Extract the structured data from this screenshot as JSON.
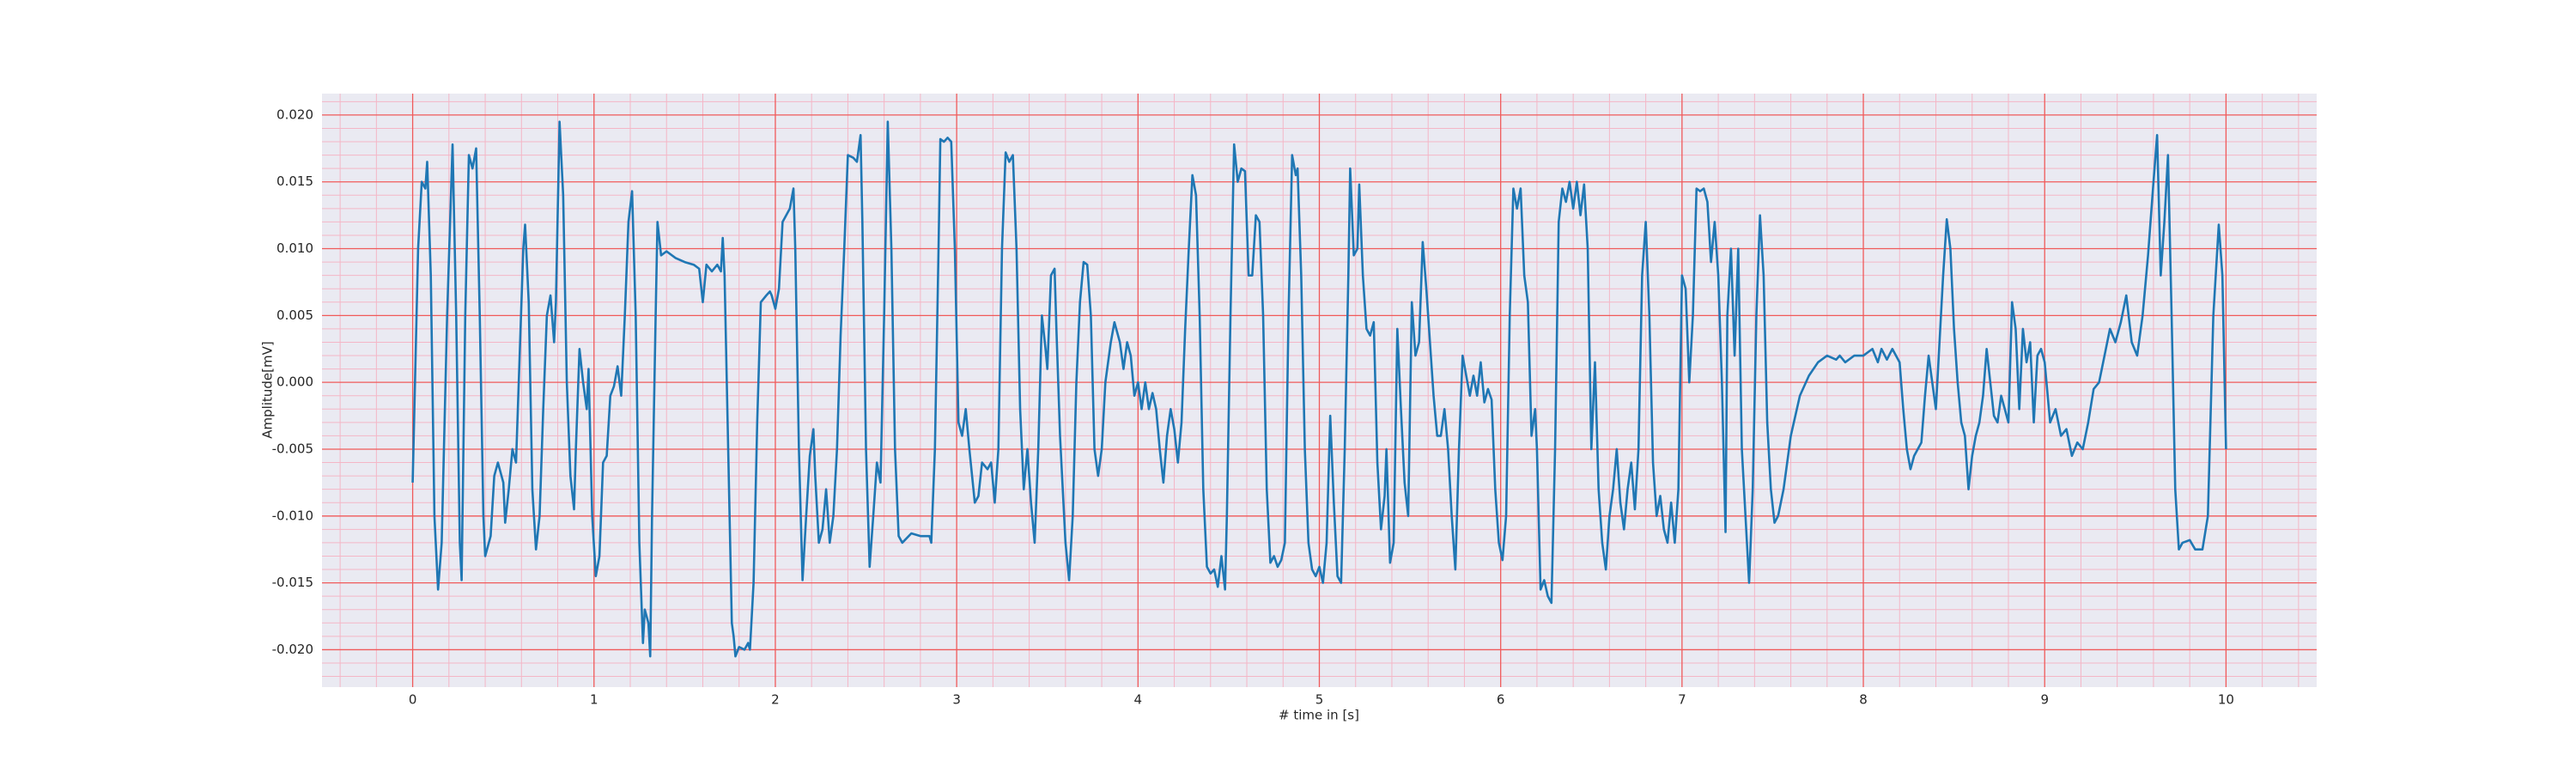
{
  "chart_data": {
    "type": "line",
    "xlabel": "# time in [s]",
    "ylabel": "Amplitude[mV]",
    "color": "#1f77b4",
    "grid": true,
    "minor_grid": true,
    "xlim": [
      -0.5,
      10.5
    ],
    "ylim": [
      -0.0228,
      0.0216
    ],
    "xticks": [
      0,
      1,
      2,
      3,
      4,
      5,
      6,
      7,
      8,
      9,
      10
    ],
    "yticks": [
      {
        "value": -0.02,
        "label": "-0.020"
      },
      {
        "value": -0.015,
        "label": "-0.015"
      },
      {
        "value": -0.01,
        "label": "-0.010"
      },
      {
        "value": -0.005,
        "label": "-0.005"
      },
      {
        "value": 0,
        "label": "0.000"
      },
      {
        "value": 0.005,
        "label": "0.005"
      },
      {
        "value": 0.01,
        "label": "0.010"
      },
      {
        "value": 0.015,
        "label": "0.015"
      },
      {
        "value": 0.02,
        "label": "0.020"
      }
    ],
    "x": [
      0.0,
      0.03,
      0.05,
      0.07,
      0.08,
      0.1,
      0.12,
      0.14,
      0.16,
      0.19,
      0.22,
      0.24,
      0.26,
      0.27,
      0.29,
      0.31,
      0.33,
      0.35,
      0.37,
      0.39,
      0.4,
      0.43,
      0.45,
      0.47,
      0.5,
      0.51,
      0.53,
      0.55,
      0.57,
      0.59,
      0.61,
      0.62,
      0.64,
      0.66,
      0.68,
      0.7,
      0.72,
      0.74,
      0.76,
      0.78,
      0.79,
      0.81,
      0.83,
      0.85,
      0.87,
      0.89,
      0.9,
      0.92,
      0.94,
      0.96,
      0.97,
      0.99,
      1.01,
      1.03,
      1.05,
      1.07,
      1.09,
      1.11,
      1.13,
      1.15,
      1.17,
      1.19,
      1.21,
      1.23,
      1.25,
      1.27,
      1.28,
      1.3,
      1.31,
      1.32,
      1.34,
      1.35,
      1.37,
      1.4,
      1.45,
      1.5,
      1.55,
      1.58,
      1.6,
      1.62,
      1.65,
      1.68,
      1.7,
      1.71,
      1.72,
      1.74,
      1.76,
      1.77,
      1.78,
      1.8,
      1.83,
      1.85,
      1.86,
      1.88,
      1.9,
      1.92,
      1.95,
      1.97,
      1.98,
      2.0,
      2.02,
      2.04,
      2.06,
      2.08,
      2.1,
      2.11,
      2.13,
      2.15,
      2.17,
      2.19,
      2.21,
      2.22,
      2.24,
      2.26,
      2.28,
      2.3,
      2.32,
      2.34,
      2.36,
      2.38,
      2.4,
      2.43,
      2.45,
      2.47,
      2.48,
      2.5,
      2.52,
      2.54,
      2.56,
      2.58,
      2.6,
      2.62,
      2.64,
      2.66,
      2.68,
      2.7,
      2.75,
      2.8,
      2.85,
      2.86,
      2.88,
      2.9,
      2.91,
      2.93,
      2.95,
      2.97,
      2.99,
      3.01,
      3.03,
      3.05,
      3.07,
      3.1,
      3.12,
      3.14,
      3.17,
      3.19,
      3.21,
      3.23,
      3.25,
      3.27,
      3.29,
      3.31,
      3.33,
      3.35,
      3.37,
      3.39,
      3.41,
      3.43,
      3.45,
      3.47,
      3.49,
      3.5,
      3.52,
      3.54,
      3.55,
      3.57,
      3.6,
      3.62,
      3.64,
      3.66,
      3.68,
      3.7,
      3.72,
      3.74,
      3.76,
      3.78,
      3.8,
      3.82,
      3.85,
      3.87,
      3.9,
      3.92,
      3.94,
      3.96,
      3.98,
      4.0,
      4.02,
      4.04,
      4.06,
      4.08,
      4.1,
      4.12,
      4.14,
      4.16,
      4.18,
      4.2,
      4.22,
      4.24,
      4.26,
      4.28,
      4.3,
      4.32,
      4.34,
      4.36,
      4.38,
      4.4,
      4.42,
      4.44,
      4.46,
      4.48,
      4.49,
      4.51,
      4.53,
      4.55,
      4.57,
      4.59,
      4.61,
      4.63,
      4.65,
      4.67,
      4.69,
      4.71,
      4.73,
      4.75,
      4.77,
      4.79,
      4.81,
      4.83,
      4.85,
      4.87,
      4.88,
      4.9,
      4.92,
      4.94,
      4.96,
      4.98,
      5.0,
      5.02,
      5.04,
      5.06,
      5.08,
      5.1,
      5.12,
      5.14,
      5.16,
      5.17,
      5.19,
      5.21,
      5.22,
      5.24,
      5.26,
      5.28,
      5.3,
      5.32,
      5.34,
      5.36,
      5.37,
      5.39,
      5.41,
      5.43,
      5.45,
      5.47,
      5.49,
      5.51,
      5.53,
      5.55,
      5.57,
      5.59,
      5.61,
      5.63,
      5.65,
      5.67,
      5.69,
      5.71,
      5.73,
      5.75,
      5.77,
      5.79,
      5.81,
      5.83,
      5.85,
      5.87,
      5.89,
      5.91,
      5.93,
      5.95,
      5.97,
      5.99,
      6.01,
      6.03,
      6.05,
      6.07,
      6.09,
      6.11,
      6.13,
      6.15,
      6.17,
      6.19,
      6.2,
      6.22,
      6.24,
      6.26,
      6.28,
      6.3,
      6.32,
      6.34,
      6.36,
      6.38,
      6.4,
      6.42,
      6.44,
      6.46,
      6.48,
      6.5,
      6.52,
      6.54,
      6.56,
      6.58,
      6.6,
      6.62,
      6.64,
      6.66,
      6.68,
      6.7,
      6.72,
      6.74,
      6.76,
      6.78,
      6.8,
      6.82,
      6.84,
      6.86,
      6.88,
      6.9,
      6.92,
      6.94,
      6.96,
      6.98,
      7.0,
      7.02,
      7.04,
      7.06,
      7.08,
      7.1,
      7.12,
      7.14,
      7.16,
      7.18,
      7.2,
      7.22,
      7.24,
      7.25,
      7.27,
      7.29,
      7.31,
      7.33,
      7.35,
      7.37,
      7.39,
      7.41,
      7.43,
      7.45,
      7.47,
      7.49,
      7.51,
      7.53,
      7.56,
      7.6,
      7.65,
      7.7,
      7.75,
      7.8,
      7.85,
      7.87,
      7.9,
      7.95,
      8.0,
      8.05,
      8.08,
      8.1,
      8.13,
      8.16,
      8.2,
      8.22,
      8.24,
      8.26,
      8.28,
      8.3,
      8.32,
      8.34,
      8.36,
      8.38,
      8.4,
      8.42,
      8.44,
      8.46,
      8.48,
      8.5,
      8.52,
      8.54,
      8.56,
      8.58,
      8.6,
      8.62,
      8.64,
      8.66,
      8.68,
      8.7,
      8.72,
      8.74,
      8.76,
      8.78,
      8.8,
      8.82,
      8.84,
      8.86,
      8.88,
      8.9,
      8.92,
      8.94,
      8.96,
      8.98,
      9.0,
      9.03,
      9.06,
      9.09,
      9.12,
      9.15,
      9.18,
      9.21,
      9.24,
      9.27,
      9.3,
      9.33,
      9.36,
      9.39,
      9.42,
      9.45,
      9.48,
      9.51,
      9.54,
      9.57,
      9.6,
      9.62,
      9.64,
      9.66,
      9.68,
      9.7,
      9.72,
      9.74,
      9.76,
      9.8,
      9.83,
      9.87,
      9.9,
      9.93,
      9.96,
      9.98,
      10.0
    ],
    "values": [
      -0.0075,
      0.01,
      0.015,
      0.0145,
      0.0165,
      0.008,
      -0.01,
      -0.0155,
      -0.012,
      0.005,
      0.0178,
      0.005,
      -0.012,
      -0.0148,
      0.005,
      0.017,
      0.016,
      0.0175,
      0.005,
      -0.01,
      -0.013,
      -0.0115,
      -0.007,
      -0.006,
      -0.0075,
      -0.0105,
      -0.008,
      -0.005,
      -0.006,
      0.002,
      0.01,
      0.0118,
      0.006,
      -0.008,
      -0.0125,
      -0.01,
      -0.002,
      0.005,
      0.0065,
      0.003,
      0.006,
      0.0195,
      0.014,
      0.0,
      -0.007,
      -0.0095,
      -0.005,
      0.0025,
      0.0,
      -0.002,
      0.001,
      -0.01,
      -0.0145,
      -0.013,
      -0.006,
      -0.0055,
      -0.001,
      -0.0003,
      0.0012,
      -0.001,
      0.005,
      0.012,
      0.0143,
      0.005,
      -0.012,
      -0.0195,
      -0.017,
      -0.018,
      -0.0205,
      -0.01,
      0.005,
      0.012,
      0.0095,
      0.0098,
      0.0093,
      0.009,
      0.0088,
      0.0085,
      0.006,
      0.0088,
      0.0083,
      0.0088,
      0.0083,
      0.0108,
      0.008,
      -0.005,
      -0.018,
      -0.019,
      -0.0205,
      -0.0198,
      -0.02,
      -0.0195,
      -0.02,
      -0.015,
      -0.003,
      0.006,
      0.0065,
      0.0068,
      0.0065,
      0.0055,
      0.007,
      0.012,
      0.0125,
      0.013,
      0.0145,
      0.01,
      -0.005,
      -0.0148,
      -0.01,
      -0.0055,
      -0.0035,
      -0.007,
      -0.012,
      -0.011,
      -0.008,
      -0.012,
      -0.01,
      -0.005,
      0.0035,
      0.01,
      0.017,
      0.0168,
      0.0165,
      0.0185,
      0.012,
      -0.005,
      -0.0138,
      -0.01,
      -0.006,
      -0.0075,
      0.005,
      0.0195,
      0.01,
      -0.005,
      -0.0115,
      -0.012,
      -0.0113,
      -0.0115,
      -0.0115,
      -0.012,
      -0.005,
      0.01,
      0.0182,
      0.018,
      0.0183,
      0.018,
      0.01,
      -0.003,
      -0.004,
      -0.002,
      -0.005,
      -0.009,
      -0.0085,
      -0.006,
      -0.0065,
      -0.006,
      -0.009,
      -0.005,
      0.01,
      0.0172,
      0.0165,
      0.017,
      0.01,
      -0.002,
      -0.008,
      -0.005,
      -0.009,
      -0.012,
      -0.005,
      0.005,
      0.0025,
      0.001,
      0.008,
      0.0085,
      0.004,
      -0.004,
      -0.012,
      -0.0148,
      -0.01,
      0.0,
      0.006,
      0.009,
      0.0088,
      0.005,
      -0.005,
      -0.007,
      -0.005,
      0.0,
      0.003,
      0.0045,
      0.003,
      0.001,
      0.003,
      0.002,
      -0.001,
      0.0,
      -0.002,
      0.0,
      -0.002,
      -0.0008,
      -0.002,
      -0.005,
      -0.0075,
      -0.004,
      -0.002,
      -0.0035,
      -0.006,
      -0.003,
      0.004,
      0.01,
      0.0155,
      0.014,
      0.005,
      -0.008,
      -0.0138,
      -0.0143,
      -0.014,
      -0.0153,
      -0.013,
      -0.0155,
      -0.01,
      0.005,
      0.0178,
      0.015,
      0.016,
      0.0158,
      0.008,
      0.008,
      0.0125,
      0.012,
      0.005,
      -0.008,
      -0.0135,
      -0.013,
      -0.0138,
      -0.0133,
      -0.012,
      0.005,
      0.017,
      0.0155,
      0.016,
      0.008,
      -0.005,
      -0.012,
      -0.014,
      -0.0145,
      -0.0138,
      -0.015,
      -0.012,
      -0.0025,
      -0.009,
      -0.0145,
      -0.015,
      -0.005,
      0.008,
      0.016,
      0.0095,
      0.01,
      0.0148,
      0.008,
      0.004,
      0.0035,
      0.0045,
      -0.006,
      -0.011,
      -0.0085,
      -0.005,
      -0.0135,
      -0.012,
      0.004,
      -0.002,
      -0.0075,
      -0.01,
      0.006,
      0.002,
      0.003,
      0.0105,
      0.007,
      0.003,
      -0.001,
      -0.004,
      -0.004,
      -0.002,
      -0.005,
      -0.01,
      -0.014,
      -0.005,
      0.002,
      0.0005,
      -0.001,
      0.0005,
      -0.001,
      0.0015,
      -0.0015,
      -0.0005,
      -0.0013,
      -0.008,
      -0.012,
      -0.0133,
      -0.01,
      0.005,
      0.0145,
      0.013,
      0.0145,
      0.008,
      0.006,
      -0.004,
      -0.002,
      -0.005,
      -0.0155,
      -0.0148,
      -0.016,
      -0.0165,
      -0.005,
      0.012,
      0.0145,
      0.0135,
      0.015,
      0.013,
      0.015,
      0.0125,
      0.0148,
      0.01,
      -0.005,
      0.0015,
      -0.008,
      -0.012,
      -0.014,
      -0.01,
      -0.008,
      -0.005,
      -0.009,
      -0.011,
      -0.008,
      -0.006,
      -0.0095,
      -0.005,
      0.008,
      0.012,
      0.005,
      -0.006,
      -0.01,
      -0.0085,
      -0.011,
      -0.012,
      -0.009,
      -0.012,
      -0.008,
      0.008,
      0.007,
      0.0,
      0.005,
      0.0145,
      0.0143,
      0.0145,
      0.0135,
      0.009,
      0.012,
      0.008,
      0.0,
      -0.0112,
      0.005,
      0.01,
      0.002,
      0.01,
      -0.005,
      -0.01,
      -0.015,
      -0.008,
      0.005,
      0.0125,
      0.008,
      -0.003,
      -0.008,
      -0.0105,
      -0.01,
      -0.008,
      -0.004,
      -0.001,
      0.0005,
      0.0015,
      0.002,
      0.0017,
      0.002,
      0.0015,
      0.002,
      0.002,
      0.0025,
      0.0015,
      0.0025,
      0.0017,
      0.0025,
      0.0015,
      -0.002,
      -0.005,
      -0.0065,
      -0.0055,
      -0.005,
      -0.0045,
      -0.001,
      0.002,
      0.0,
      -0.002,
      0.003,
      0.008,
      0.0122,
      0.01,
      0.004,
      0.0,
      -0.003,
      -0.004,
      -0.008,
      -0.0055,
      -0.004,
      -0.003,
      -0.001,
      0.0025,
      0.0,
      -0.0025,
      -0.003,
      -0.001,
      -0.002,
      -0.003,
      0.006,
      0.004,
      -0.002,
      0.004,
      0.0015,
      0.003,
      -0.003,
      0.002,
      0.0025,
      0.0015,
      -0.003,
      -0.002,
      -0.004,
      -0.0035,
      -0.0055,
      -0.0045,
      -0.005,
      -0.003,
      -0.0005,
      0.0,
      0.002,
      0.004,
      0.003,
      0.0045,
      0.0065,
      0.003,
      0.002,
      0.005,
      0.0095,
      0.015,
      0.0185,
      0.008,
      0.012,
      0.017,
      0.005,
      -0.008,
      -0.0125,
      -0.012,
      -0.0118,
      -0.0125,
      -0.0125,
      -0.01,
      0.005,
      0.0118,
      0.008,
      -0.005
    ]
  }
}
